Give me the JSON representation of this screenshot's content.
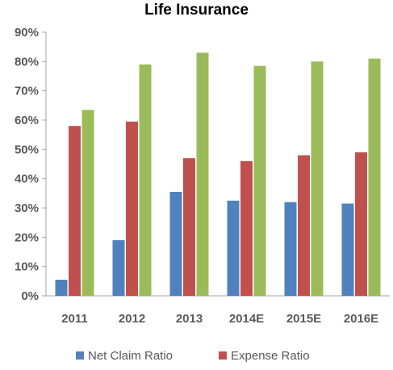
{
  "chart_data": {
    "type": "bar",
    "title": "Life Insurance",
    "xlabel": "",
    "ylabel": "",
    "categories": [
      "2011",
      "2012",
      "2013",
      "2014E",
      "2015E",
      "2016E"
    ],
    "series": [
      {
        "name": "Net Claim Ratio",
        "color": "#4F81BD",
        "values": [
          5.5,
          19,
          35.5,
          32.5,
          32,
          31.5
        ]
      },
      {
        "name": "Expense Ratio",
        "color": "#C0504D",
        "values": [
          58,
          59.5,
          47,
          46,
          48,
          49
        ]
      },
      {
        "name": "",
        "color": "#9BBB59",
        "values": [
          63.5,
          79,
          83,
          78.5,
          80,
          81
        ]
      }
    ],
    "yticks": [
      "0%",
      "10%",
      "20%",
      "30%",
      "40%",
      "50%",
      "60%",
      "70%",
      "80%",
      "90%"
    ],
    "ylim": [
      0,
      90
    ],
    "grid": false,
    "legend_position": "bottom"
  }
}
